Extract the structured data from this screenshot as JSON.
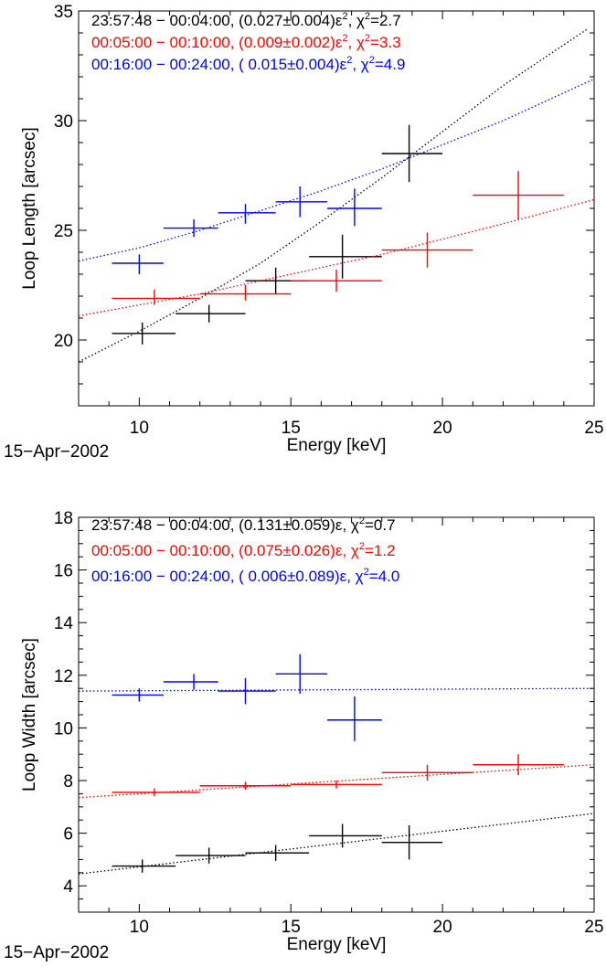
{
  "chart_data": [
    {
      "type": "scatter",
      "title": "",
      "xlabel": "Energy [keV]",
      "ylabel": "Loop Length [arcsec]",
      "date_label": "15−Apr−2002",
      "xlim": [
        8,
        25
      ],
      "ylim": [
        17,
        35
      ],
      "x_ticks": [
        10,
        15,
        20,
        25
      ],
      "y_ticks": [
        20,
        25,
        30,
        35
      ],
      "grid": false,
      "legend": "top-left",
      "series": [
        {
          "legend": {
            "prefix": "23:57:48 − 00:04:00, (0.027±0.004)ε",
            "sup": "2",
            "chi_label": ", χ",
            "chi_sup": "2",
            "chi_value": "=2.7"
          },
          "color": "#000000",
          "points": [
            {
              "x": 10.1,
              "xlo": 9.1,
              "xhi": 11.2,
              "y": 20.3,
              "ylo": 19.8,
              "yhi": 20.8
            },
            {
              "x": 12.3,
              "xlo": 11.2,
              "xhi": 13.5,
              "y": 21.2,
              "ylo": 20.8,
              "yhi": 21.6
            },
            {
              "x": 14.5,
              "xlo": 13.5,
              "xhi": 15.6,
              "y": 22.7,
              "ylo": 22.1,
              "yhi": 23.3
            },
            {
              "x": 16.7,
              "xlo": 15.6,
              "xhi": 18.0,
              "y": 23.8,
              "ylo": 22.8,
              "yhi": 24.8
            },
            {
              "x": 18.9,
              "xlo": 18.0,
              "xhi": 20.0,
              "y": 28.5,
              "ylo": 27.2,
              "yhi": 29.8
            }
          ],
          "fit_line": [
            [
              8,
              19.0
            ],
            [
              10,
              20.4
            ],
            [
              12,
              21.9
            ],
            [
              14,
              23.5
            ],
            [
              16,
              25.4
            ],
            [
              18,
              27.4
            ],
            [
              20,
              29.5
            ],
            [
              22,
              31.6
            ],
            [
              24.8,
              34.2
            ]
          ]
        },
        {
          "legend": {
            "prefix": "00:05:00 − 00:10:00, (0.009±0.002)ε",
            "sup": "2",
            "chi_label": ", χ",
            "chi_sup": "2",
            "chi_value": "=3.3"
          },
          "color": "#ff0000",
          "points": [
            {
              "x": 10.5,
              "xlo": 9.1,
              "xhi": 12.0,
              "y": 21.9,
              "ylo": 21.6,
              "yhi": 22.3
            },
            {
              "x": 13.5,
              "xlo": 12.0,
              "xhi": 15.0,
              "y": 22.1,
              "ylo": 21.8,
              "yhi": 22.5
            },
            {
              "x": 16.5,
              "xlo": 15.0,
              "xhi": 18.0,
              "y": 22.7,
              "ylo": 22.2,
              "yhi": 23.2
            },
            {
              "x": 19.5,
              "xlo": 18.0,
              "xhi": 21.0,
              "y": 24.1,
              "ylo": 23.3,
              "yhi": 24.9
            },
            {
              "x": 22.5,
              "xlo": 21.0,
              "xhi": 24.0,
              "y": 26.6,
              "ylo": 25.5,
              "yhi": 27.7
            }
          ],
          "fit_line": [
            [
              8,
              21.1
            ],
            [
              10,
              21.6
            ],
            [
              12,
              22.1
            ],
            [
              14,
              22.7
            ],
            [
              16,
              23.3
            ],
            [
              18,
              23.9
            ],
            [
              20,
              24.6
            ],
            [
              22,
              25.3
            ],
            [
              25,
              26.4
            ]
          ]
        },
        {
          "legend": {
            "prefix": "00:16:00 − 00:24:00, ( 0.015±0.004)ε",
            "sup": "2",
            "chi_label": ", χ",
            "chi_sup": "2",
            "chi_value": "=4.9"
          },
          "color": "#0000ff",
          "points": [
            {
              "x": 10.0,
              "xlo": 9.1,
              "xhi": 10.8,
              "y": 23.5,
              "ylo": 23.0,
              "yhi": 23.9
            },
            {
              "x": 11.8,
              "xlo": 10.8,
              "xhi": 12.6,
              "y": 25.1,
              "ylo": 24.7,
              "yhi": 25.5
            },
            {
              "x": 13.5,
              "xlo": 12.6,
              "xhi": 14.5,
              "y": 25.8,
              "ylo": 25.3,
              "yhi": 26.2
            },
            {
              "x": 15.3,
              "xlo": 14.5,
              "xhi": 16.2,
              "y": 26.3,
              "ylo": 25.6,
              "yhi": 27.0
            },
            {
              "x": 17.1,
              "xlo": 16.2,
              "xhi": 18.0,
              "y": 26.0,
              "ylo": 25.2,
              "yhi": 26.9
            }
          ],
          "fit_line": [
            [
              8,
              23.6
            ],
            [
              10,
              24.2
            ],
            [
              12,
              25.0
            ],
            [
              14,
              25.9
            ],
            [
              16,
              26.8
            ],
            [
              18,
              27.8
            ],
            [
              20,
              28.9
            ],
            [
              22,
              30.0
            ],
            [
              25,
              31.9
            ]
          ]
        }
      ]
    },
    {
      "type": "scatter",
      "title": "",
      "xlabel": "Energy [keV]",
      "ylabel": "Loop Width [arcsec]",
      "date_label": "15−Apr−2002",
      "xlim": [
        8,
        25
      ],
      "ylim": [
        3,
        18
      ],
      "x_ticks": [
        10,
        15,
        20,
        25
      ],
      "y_ticks": [
        4,
        6,
        8,
        10,
        12,
        14,
        16,
        18
      ],
      "grid": false,
      "legend": "top-left",
      "series": [
        {
          "legend": {
            "prefix": "23:57:48 − 00:04:00, (0.131±0.059)ε",
            "sup": "",
            "chi_label": ", χ",
            "chi_sup": "2",
            "chi_value": "=0.7"
          },
          "color": "#000000",
          "points": [
            {
              "x": 10.1,
              "xlo": 9.1,
              "xhi": 11.2,
              "y": 4.75,
              "ylo": 4.5,
              "yhi": 5.0
            },
            {
              "x": 12.3,
              "xlo": 11.2,
              "xhi": 13.5,
              "y": 5.15,
              "ylo": 4.85,
              "yhi": 5.45
            },
            {
              "x": 14.5,
              "xlo": 13.5,
              "xhi": 15.6,
              "y": 5.25,
              "ylo": 4.95,
              "yhi": 5.55
            },
            {
              "x": 16.7,
              "xlo": 15.6,
              "xhi": 18.0,
              "y": 5.9,
              "ylo": 5.45,
              "yhi": 6.35
            },
            {
              "x": 18.9,
              "xlo": 18.0,
              "xhi": 20.0,
              "y": 5.65,
              "ylo": 5.0,
              "yhi": 6.3
            }
          ],
          "fit_line": [
            [
              8,
              4.45
            ],
            [
              25,
              6.75
            ]
          ]
        },
        {
          "legend": {
            "prefix": "00:05:00 − 00:10:00, (0.075±0.026)ε",
            "sup": "",
            "chi_label": ", χ",
            "chi_sup": "2",
            "chi_value": "=1.2"
          },
          "color": "#ff0000",
          "points": [
            {
              "x": 10.5,
              "xlo": 9.1,
              "xhi": 12.0,
              "y": 7.55,
              "ylo": 7.4,
              "yhi": 7.7
            },
            {
              "x": 13.5,
              "xlo": 12.0,
              "xhi": 15.0,
              "y": 7.8,
              "ylo": 7.65,
              "yhi": 7.95
            },
            {
              "x": 16.5,
              "xlo": 15.0,
              "xhi": 18.0,
              "y": 7.85,
              "ylo": 7.7,
              "yhi": 8.0
            },
            {
              "x": 19.5,
              "xlo": 18.0,
              "xhi": 21.0,
              "y": 8.3,
              "ylo": 8.0,
              "yhi": 8.6
            },
            {
              "x": 22.5,
              "xlo": 21.0,
              "xhi": 24.0,
              "y": 8.6,
              "ylo": 8.2,
              "yhi": 9.0
            }
          ],
          "fit_line": [
            [
              8,
              7.35
            ],
            [
              25,
              8.6
            ]
          ]
        },
        {
          "legend": {
            "prefix": "00:16:00 − 00:24:00, ( 0.006±0.089)ε",
            "sup": "",
            "chi_label": ", χ",
            "chi_sup": "2",
            "chi_value": "=4.0"
          },
          "color": "#0000ff",
          "points": [
            {
              "x": 10.0,
              "xlo": 9.1,
              "xhi": 10.8,
              "y": 11.25,
              "ylo": 11.0,
              "yhi": 11.5
            },
            {
              "x": 11.8,
              "xlo": 10.8,
              "xhi": 12.6,
              "y": 11.75,
              "ylo": 11.45,
              "yhi": 12.05
            },
            {
              "x": 13.5,
              "xlo": 12.6,
              "xhi": 14.5,
              "y": 11.4,
              "ylo": 10.9,
              "yhi": 11.9
            },
            {
              "x": 15.3,
              "xlo": 14.5,
              "xhi": 16.2,
              "y": 12.05,
              "ylo": 11.3,
              "yhi": 12.8
            },
            {
              "x": 17.1,
              "xlo": 16.2,
              "xhi": 18.0,
              "y": 10.3,
              "ylo": 9.5,
              "yhi": 11.2
            }
          ],
          "fit_line": [
            [
              8,
              11.4
            ],
            [
              25,
              11.5
            ]
          ]
        }
      ]
    }
  ]
}
